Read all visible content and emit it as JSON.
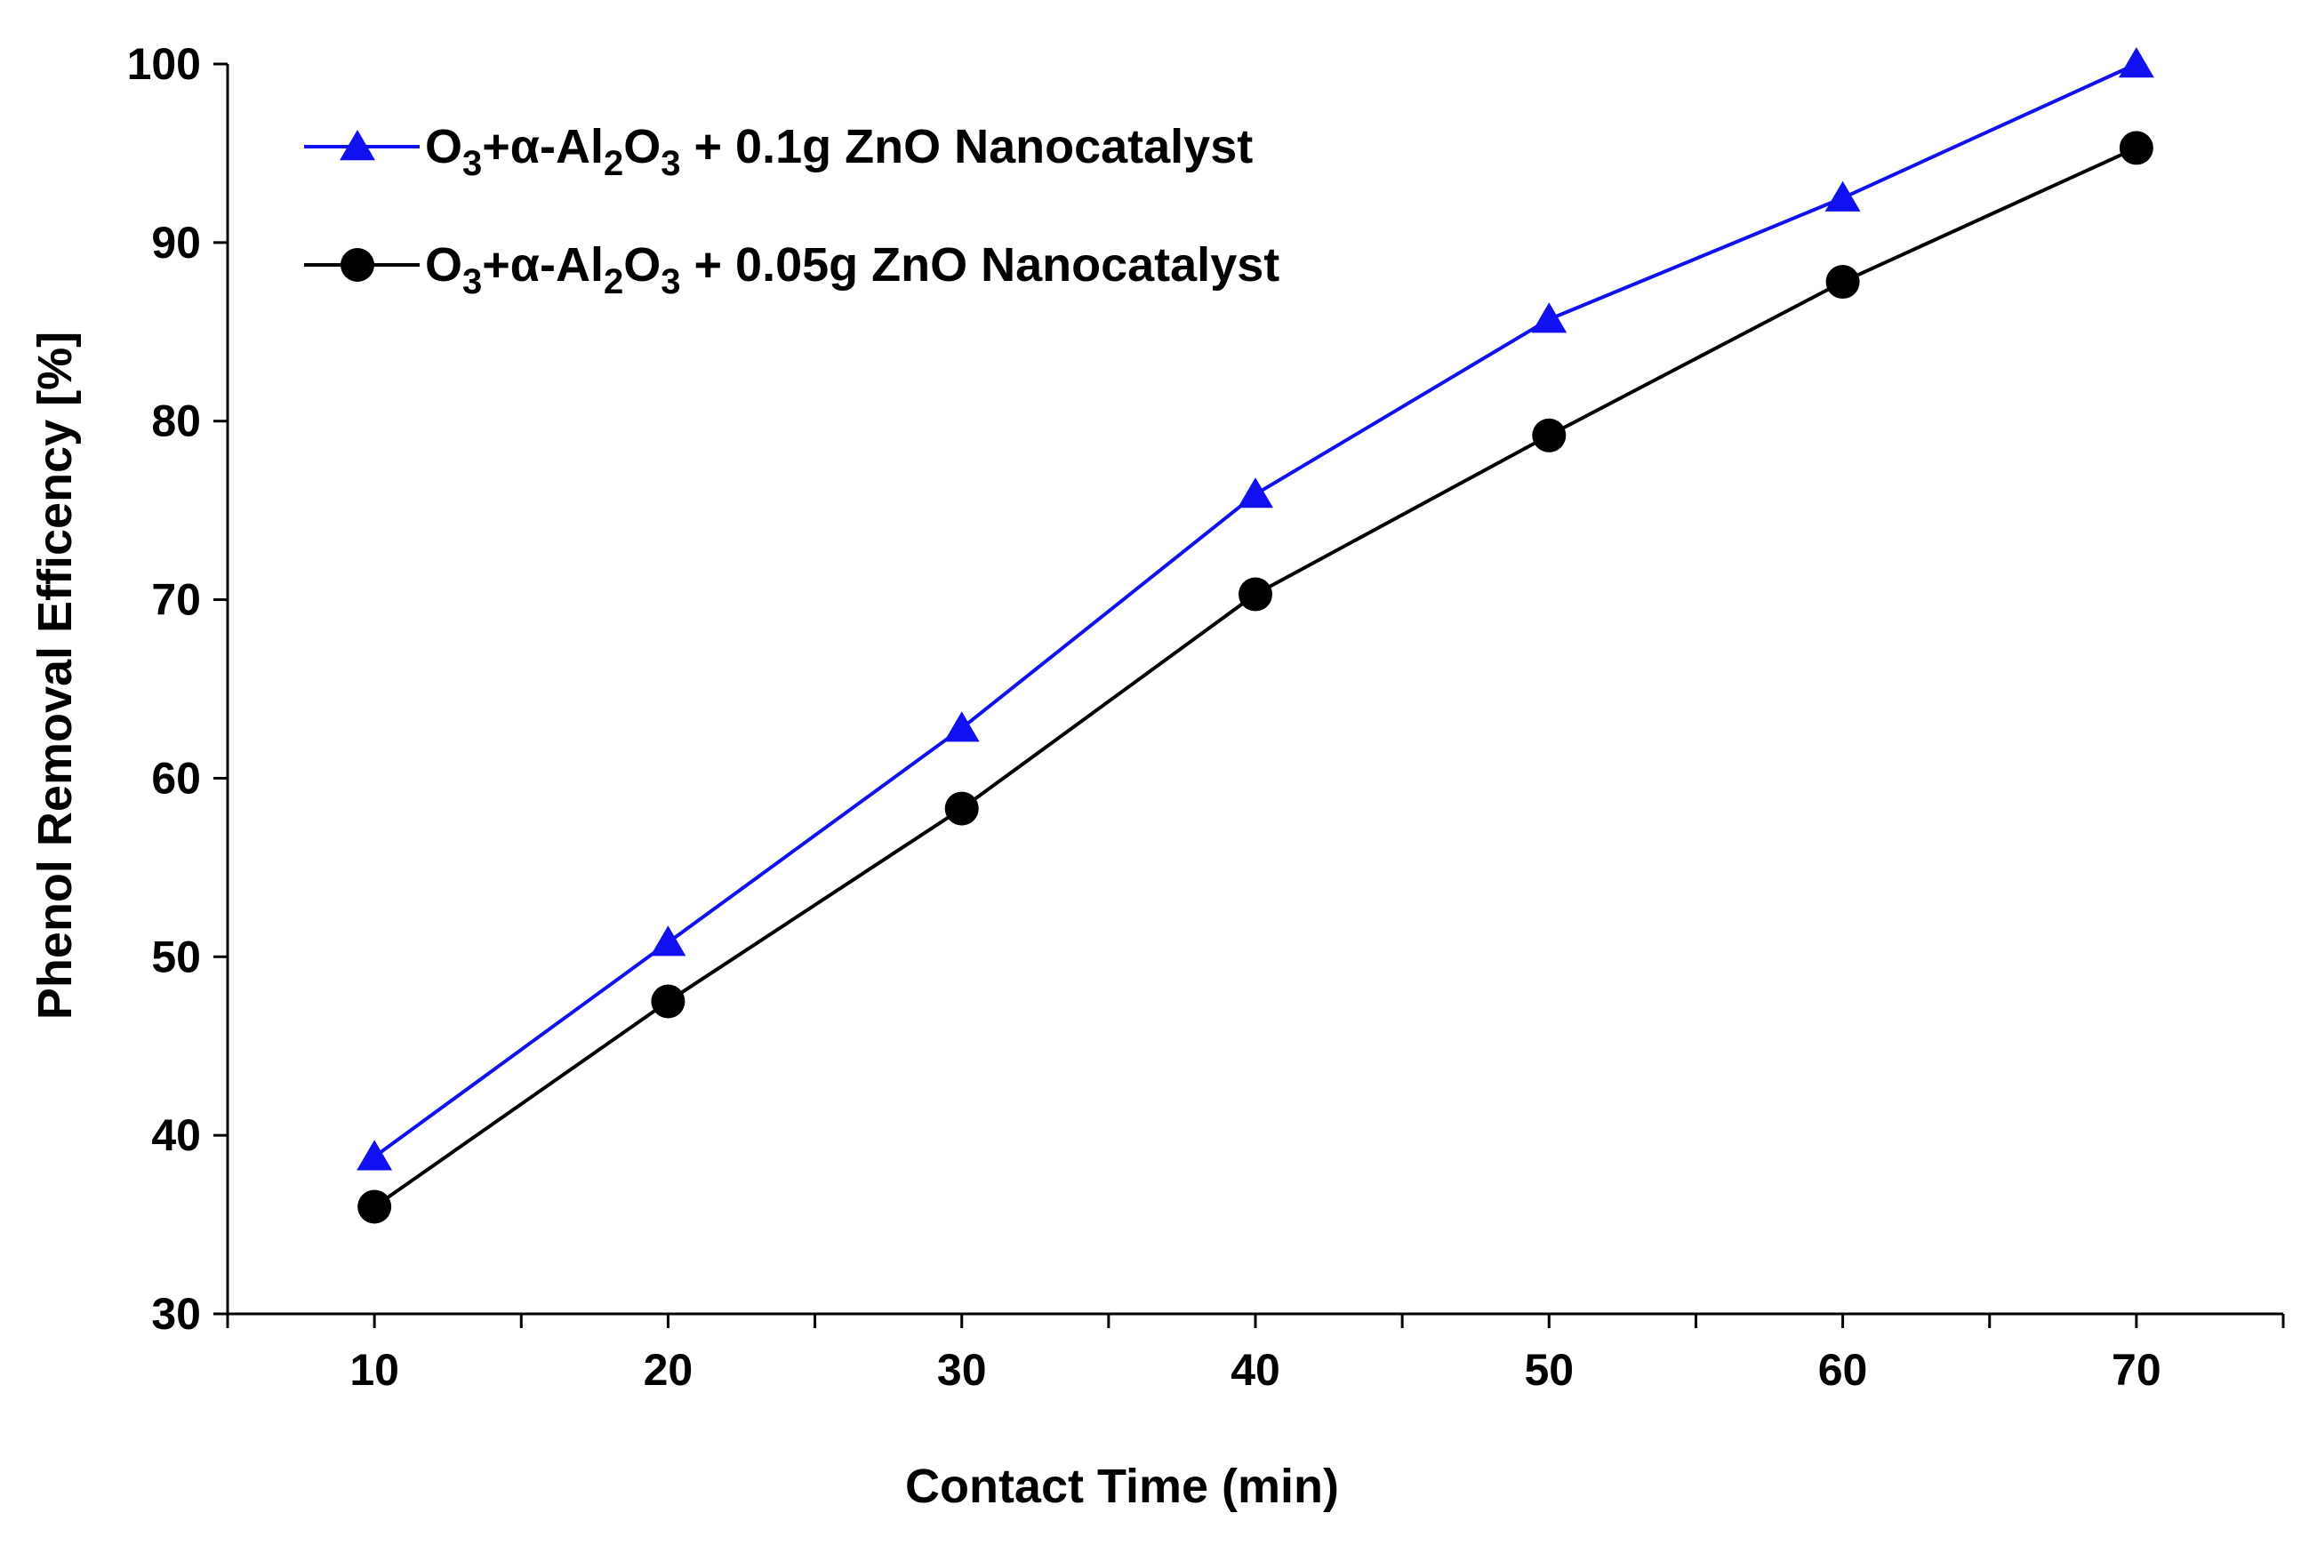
{
  "chart_data": {
    "type": "line",
    "title": "",
    "xlabel": "Contact Time (min)",
    "ylabel": "Phenol Removal Efficency [%]",
    "xlim": [
      5,
      75
    ],
    "ylim": [
      30,
      100
    ],
    "x_ticks": [
      "10",
      "20",
      "30",
      "40",
      "50",
      "60",
      "70"
    ],
    "y_ticks": [
      "30",
      "40",
      "50",
      "60",
      "70",
      "80",
      "90",
      "100"
    ],
    "grid": false,
    "legend_position": "top-left",
    "x": [
      10,
      20,
      30,
      40,
      50,
      60,
      70
    ],
    "series": [
      {
        "name": "O3+α-Al2O3 + 0.1g ZnO Nanocatalyst",
        "legend_parts": [
          "O",
          "3",
          "+α-Al",
          "2",
          "O",
          "3",
          " + 0.1g ZnO Nanocatalyst"
        ],
        "color": "#1010f0",
        "marker": "triangle",
        "values": [
          38.8,
          50.8,
          62.8,
          75.9,
          85.7,
          92.5,
          100.0
        ]
      },
      {
        "name": "O3+α-Al2O3 + 0.05g ZnO Nanocatalyst",
        "legend_parts": [
          "O",
          "3",
          "+α-Al",
          "2",
          "O",
          "3",
          " + 0.05g ZnO Nanocatalyst"
        ],
        "color": "#000000",
        "marker": "circle",
        "values": [
          36.0,
          47.5,
          58.3,
          70.3,
          79.2,
          87.8,
          95.3
        ]
      }
    ]
  }
}
